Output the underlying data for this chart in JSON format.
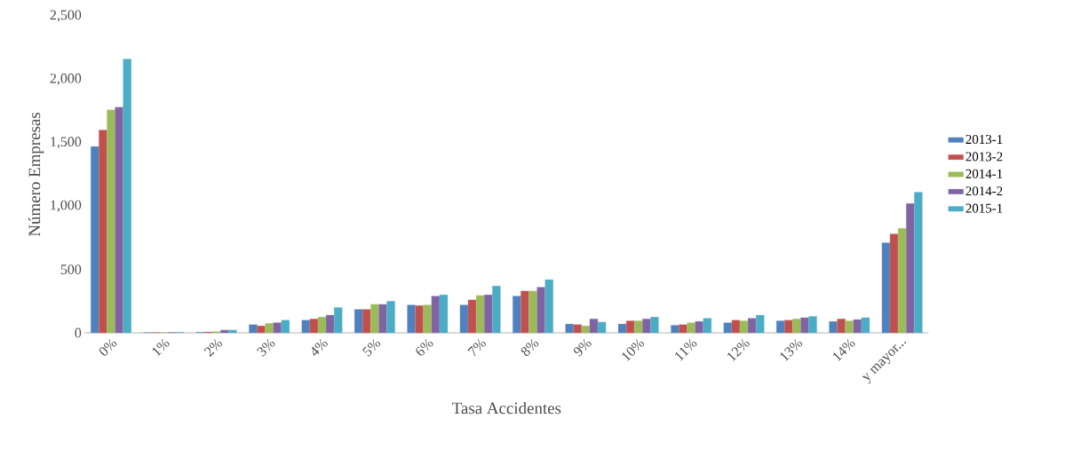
{
  "chart_data": {
    "type": "bar",
    "xlabel": "Tasa Accidentes",
    "ylabel": "Número Empresas",
    "categories": [
      "0%",
      "1%",
      "2%",
      "3%",
      "4%",
      "5%",
      "6%",
      "7%",
      "8%",
      "9%",
      "10%",
      "11%",
      "12%",
      "13%",
      "14%",
      "y mayor..."
    ],
    "series": [
      {
        "name": "2013-1",
        "color": "#4f81bd",
        "values": [
          1470,
          2,
          5,
          65,
          100,
          185,
          220,
          220,
          290,
          70,
          70,
          60,
          80,
          95,
          90,
          710
        ]
      },
      {
        "name": "2013-2",
        "color": "#c0504d",
        "values": [
          1600,
          3,
          7,
          55,
          110,
          185,
          215,
          260,
          330,
          65,
          95,
          65,
          100,
          100,
          110,
          780
        ]
      },
      {
        "name": "2014-1",
        "color": "#9bbb59",
        "values": [
          1760,
          3,
          10,
          75,
          125,
          225,
          220,
          295,
          330,
          55,
          95,
          80,
          95,
          110,
          95,
          825
        ]
      },
      {
        "name": "2014-2",
        "color": "#8064a2",
        "values": [
          1780,
          4,
          22,
          80,
          140,
          225,
          290,
          300,
          360,
          110,
          110,
          90,
          115,
          120,
          105,
          1020
        ]
      },
      {
        "name": "2015-1",
        "color": "#4bacc6",
        "values": [
          2160,
          5,
          22,
          100,
          200,
          250,
          300,
          370,
          420,
          85,
          125,
          115,
          140,
          130,
          120,
          1110
        ]
      }
    ],
    "ylim": [
      0,
      2500
    ],
    "yticks": [
      {
        "value": 0,
        "label": "0"
      },
      {
        "value": 500,
        "label": "500"
      },
      {
        "value": 1000,
        "label": "1,000"
      },
      {
        "value": 1500,
        "label": "1,500"
      },
      {
        "value": 2000,
        "label": "2,000"
      },
      {
        "value": 2500,
        "label": "2,500"
      }
    ],
    "legend": "right",
    "grid": false
  }
}
